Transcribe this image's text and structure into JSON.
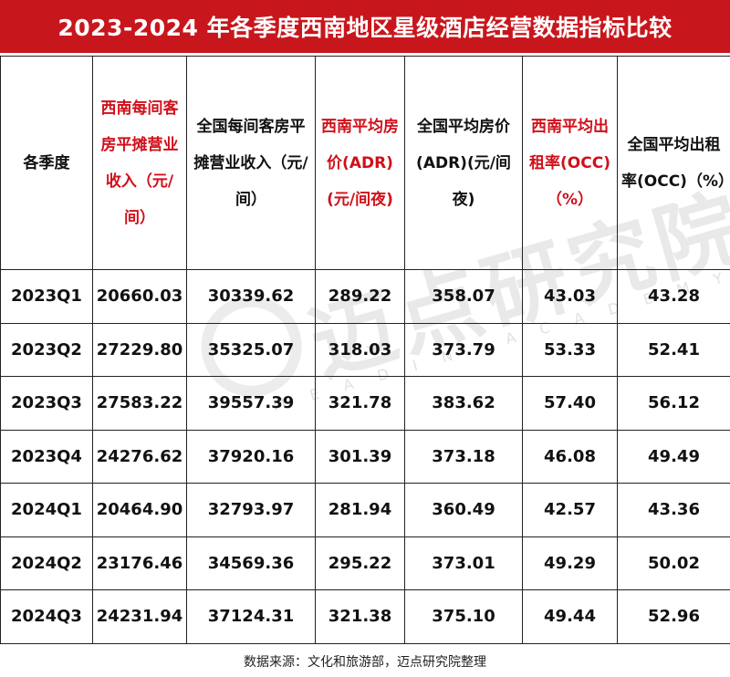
{
  "title": "2023-2024 年各季度西南地区星级酒店经营数据指标比较",
  "table": {
    "headers": [
      {
        "label": "各季度",
        "highlight": false
      },
      {
        "label": "西南每间客房平摊营业收入（元/间）",
        "highlight": true
      },
      {
        "label": "全国每间客房平摊营业收入（元/间）",
        "highlight": false
      },
      {
        "label": "西南平均房价(ADR)(元/间夜)",
        "highlight": true
      },
      {
        "label": "全国平均房价(ADR)(元/间夜)",
        "highlight": false
      },
      {
        "label": "西南平均出租率(OCC)（%）",
        "highlight": true
      },
      {
        "label": "全国平均出租率(OCC)（%）",
        "highlight": false
      }
    ],
    "rows": [
      [
        "2023Q1",
        "20660.03",
        "30339.62",
        "289.22",
        "358.07",
        "43.03",
        "43.28"
      ],
      [
        "2023Q2",
        "27229.80",
        "35325.07",
        "318.03",
        "373.79",
        "53.33",
        "52.41"
      ],
      [
        "2023Q3",
        "27583.22",
        "39557.39",
        "321.78",
        "383.62",
        "57.40",
        "56.12"
      ],
      [
        "2023Q4",
        "24276.62",
        "37920.16",
        "301.39",
        "373.18",
        "46.08",
        "49.49"
      ],
      [
        "2024Q1",
        "20464.90",
        "32793.97",
        "281.94",
        "360.49",
        "42.57",
        "43.36"
      ],
      [
        "2024Q2",
        "23176.46",
        "34569.36",
        "295.22",
        "373.01",
        "49.29",
        "50.02"
      ],
      [
        "2024Q3",
        "24231.94",
        "37124.31",
        "321.38",
        "375.10",
        "49.44",
        "52.96"
      ]
    ]
  },
  "watermark": {
    "cn": "迈点研究院",
    "en": "MEADIN ACADEMY"
  },
  "source": "数据来源：文化和旅游部，迈点研究院整理",
  "colors": {
    "title_bg": "#c8161d",
    "highlight_text": "#d0101b"
  }
}
